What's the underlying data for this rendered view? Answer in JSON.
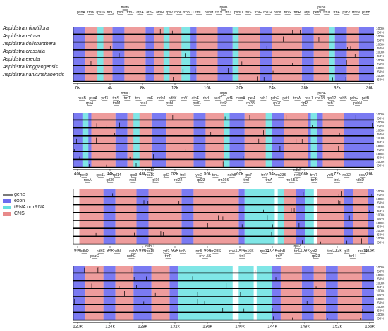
{
  "species": [
    "Aspidistra minutiflora",
    "Aspidistra retusa",
    "Aspidistra dolichanthera",
    "Aspidistra crassifila",
    "Aspidistra erecta",
    "Aspidistra longgangensis",
    "Aspidistra nankunshanensis"
  ],
  "legend": [
    {
      "label": "gene",
      "color": "#7a7a7a",
      "kind": "arrow"
    },
    {
      "label": "exon",
      "color": "#6d6df0",
      "kind": "box"
    },
    {
      "label": "tRNA or rRNA",
      "color": "#66e0e0",
      "kind": "box"
    },
    {
      "label": "CNS",
      "color": "#e88a8a",
      "kind": "box"
    }
  ],
  "colors": {
    "exon": "#7a7af2",
    "trna": "#7fe6e6",
    "cns": "#ee9c9c",
    "profile": "#c8c8f2",
    "track": "#000000"
  },
  "pct_labels": [
    "100%",
    "50%"
  ],
  "panels": [
    {
      "ticks": [
        "0k",
        "4k",
        "8k",
        "12k",
        "16k",
        "20k",
        "24k",
        "28k",
        "32k",
        "36k"
      ],
      "genes_top": [
        "matK",
        "rpoB",
        "psbC"
      ],
      "genes_mid": [
        "psbA",
        "trnK",
        "rps16",
        "trnQ",
        "psbI",
        "trnG",
        "atpA",
        "atpF",
        "atpH",
        "rps2",
        "rpoC2",
        "rpoC1",
        "trnC",
        "psbM",
        "trnY",
        "trnT",
        "psbD",
        "trnS",
        "trnG",
        "rps14",
        "psbK",
        "trnS",
        "trnR",
        "atpI",
        "petN",
        "trnD",
        "trnE",
        "psbZ",
        "trnfM",
        "psbB"
      ],
      "genes_low": []
    },
    {
      "ticks": [
        "40k",
        "44k",
        "48k",
        "52k",
        "56k",
        "60k",
        "64k",
        "68k",
        "72k",
        "76k"
      ],
      "genes_top": [
        "ndhC",
        "atpB",
        "psbE"
      ],
      "genes_mid": [
        "psaB",
        "psaA",
        "ycf3",
        "trnS",
        "trnT",
        "trnL",
        "trnF",
        "ndhJ",
        "ndhK",
        "trnV",
        "atpE",
        "rbcL",
        "accD",
        "ycf4",
        "cemA",
        "petA",
        "psbJ",
        "psbF",
        "petL",
        "trnW",
        "psaJ",
        "rps18",
        "rps12",
        "psbB",
        "psbH",
        "petB"
      ],
      "genes_low": [
        "rps4",
        "trnM",
        "psaI",
        "psbL",
        "petG",
        "trnP",
        "rpl33",
        "rpl20",
        "clpP",
        "psbT",
        "psbN"
      ]
    },
    {
      "ticks": [
        "80k",
        "84k",
        "88k",
        "92k",
        "96k",
        "100k",
        "104k",
        "108k",
        "112k",
        "116k"
      ],
      "genes_top": [
        "rps12",
        "ndhF"
      ],
      "genes_mid": [
        "petD",
        "rps11",
        "rpl14",
        "rps3",
        "rps19",
        "rpl2",
        "trnI",
        "ycf2",
        "trnL",
        "ndhB",
        "rps7",
        "trnV",
        "rrn23S",
        "rrn5",
        "trnR",
        "ycf1",
        "rpl32",
        "ccsA"
      ],
      "genes_low": [
        "rpoA",
        "rpl36",
        "rps8",
        "rpl16",
        "rpl22",
        "rpl23",
        "rrn16S",
        "trnI",
        "trnA",
        "rrn4.5S",
        "trnN",
        "trnL",
        "ndhD"
      ]
    },
    {
      "ticks": [
        "120k",
        "124k",
        "128k",
        "132k",
        "136k",
        "140k",
        "144k",
        "148k",
        "152k",
        "156k"
      ],
      "genes_top": [
        "ndhH",
        "rps7"
      ],
      "genes_mid": [
        "ndhD",
        "ndhE",
        "ndhI",
        "ndhA",
        "rps15",
        "ycf1",
        "trnN",
        "rrn5",
        "rrn23S",
        "trnA",
        "rrn16S",
        "rps12",
        "ndhB",
        "trnL",
        "ycf2",
        "trnI",
        "rpl2",
        "rps19"
      ],
      "genes_low": [
        "psaC",
        "ndhG",
        "trnR",
        "rrn4.5S",
        "trnI",
        "trnV",
        "rpl23",
        "trnH"
      ]
    }
  ]
}
